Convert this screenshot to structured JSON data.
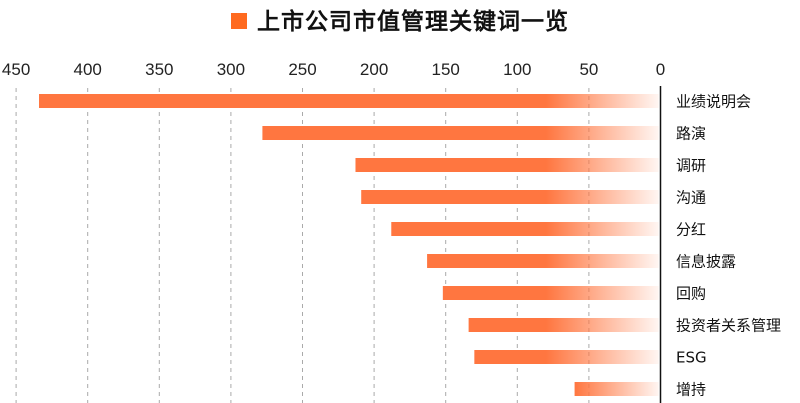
{
  "chart_data": {
    "type": "bar",
    "orientation": "horizontal",
    "title": "上市公司市值管理关键词一览",
    "categories": [
      "业绩说明会",
      "路演",
      "调研",
      "沟通",
      "分红",
      "信息披露",
      "回购",
      "投资者关系管理",
      "ESG",
      "增持"
    ],
    "values": [
      434,
      278,
      213,
      209,
      188,
      163,
      152,
      134,
      130,
      60
    ],
    "xlim": [
      0,
      450
    ],
    "x_reversed": true,
    "x_ticks": [
      450,
      400,
      350,
      300,
      250,
      200,
      150,
      100,
      50,
      0
    ],
    "grid": true,
    "xlabel": "",
    "ylabel": "",
    "colors": {
      "bar": "#ff7640",
      "title_marker": "#ff6a1f",
      "grid": "#aaaaaa"
    }
  }
}
